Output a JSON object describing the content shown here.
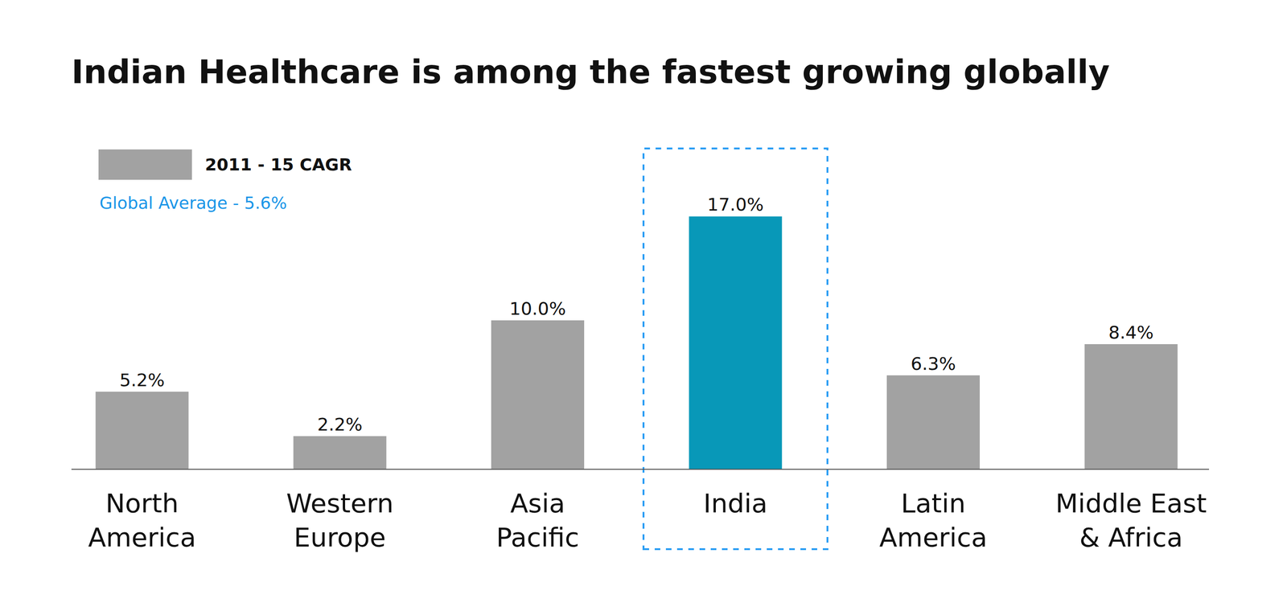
{
  "chart_data": {
    "type": "bar",
    "title": "Indian Healthcare is among the fastest growing globally",
    "categories": [
      "North\nAmerica",
      "Western\nEurope",
      "Asia\nPacific",
      "India",
      "Latin\nAmerica",
      "Middle East\n& Africa"
    ],
    "series": [
      {
        "name": "2011 - 15 CAGR",
        "values": [
          5.2,
          2.2,
          10.0,
          17.0,
          6.3,
          8.4
        ],
        "value_labels": [
          "5.2%",
          "2.2%",
          "10.0%",
          "17.0%",
          "6.3%",
          "8.4%"
        ],
        "color": "#a2a2a2",
        "colors": [
          "#a2a2a2",
          "#a2a2a2",
          "#a2a2a2",
          "#0898b8",
          "#a2a2a2",
          "#a2a2a2"
        ]
      }
    ],
    "annotations": [
      "Global Average - 5.6%"
    ],
    "ylim": [
      0,
      20
    ],
    "grid": false,
    "data_labels": true,
    "tick_labels": "x",
    "legend": "upper left"
  }
}
